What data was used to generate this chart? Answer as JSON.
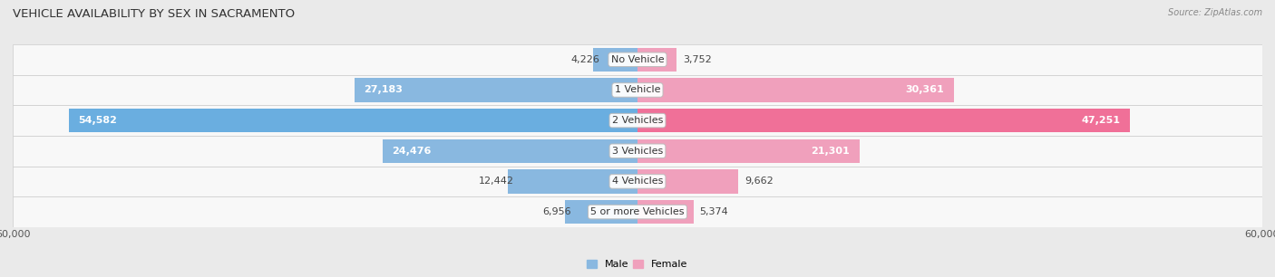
{
  "title": "VEHICLE AVAILABILITY BY SEX IN SACRAMENTO",
  "source": "Source: ZipAtlas.com",
  "categories": [
    "No Vehicle",
    "1 Vehicle",
    "2 Vehicles",
    "3 Vehicles",
    "4 Vehicles",
    "5 or more Vehicles"
  ],
  "male_values": [
    4226,
    27183,
    54582,
    24476,
    12442,
    6956
  ],
  "female_values": [
    3752,
    30361,
    47251,
    21301,
    9662,
    5374
  ],
  "male_color": "#89b8e0",
  "female_color": "#f0a0bc",
  "male_color_2v": "#6aaee0",
  "female_color_2v": "#f07098",
  "xlim": 60000,
  "bar_height": 0.78,
  "background_color": "#eaeaea",
  "row_color_odd": "#f5f5f5",
  "row_color_even": "#ebebeb",
  "title_fontsize": 9.5,
  "label_fontsize": 8,
  "value_fontsize": 8,
  "axis_fontsize": 8,
  "inside_threshold": 0.3
}
